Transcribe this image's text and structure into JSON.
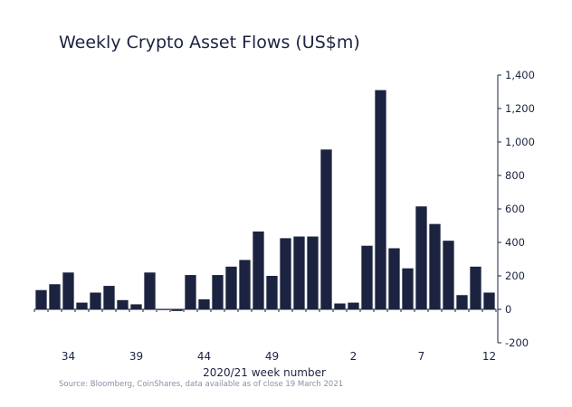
{
  "chart_data": {
    "type": "bar",
    "title": "Weekly Crypto Asset Flows (US$m)",
    "xlabel": "2020/21 week number",
    "ylabel": "",
    "ylim": [
      -200,
      1400
    ],
    "yticks": [
      {
        "value": 1400,
        "label": "1,400"
      },
      {
        "value": 1200,
        "label": "1,200"
      },
      {
        "value": 1000,
        "label": "1,000"
      },
      {
        "value": 800,
        "label": "800"
      },
      {
        "value": 600,
        "label": "600"
      },
      {
        "value": 400,
        "label": "400"
      },
      {
        "value": 200,
        "label": "200"
      },
      {
        "value": 0,
        "label": "0"
      },
      {
        "value": -200,
        "label": "-200"
      }
    ],
    "categories": [
      "32",
      "33",
      "34",
      "35",
      "36",
      "37",
      "38",
      "39",
      "40",
      "41",
      "42",
      "43",
      "44",
      "45",
      "46",
      "47",
      "48",
      "49",
      "50",
      "51",
      "52",
      "53",
      "1",
      "2",
      "3",
      "4",
      "5",
      "6",
      "7",
      "8",
      "9",
      "10",
      "11",
      "12"
    ],
    "values": [
      115,
      150,
      220,
      40,
      100,
      140,
      55,
      30,
      220,
      0,
      -10,
      205,
      60,
      205,
      255,
      295,
      465,
      200,
      425,
      435,
      435,
      955,
      35,
      40,
      380,
      1310,
      365,
      245,
      615,
      510,
      410,
      85,
      255,
      100
    ],
    "xtick_labels": [
      {
        "index": 2,
        "label": "34"
      },
      {
        "index": 7,
        "label": "39"
      },
      {
        "index": 12,
        "label": "44"
      },
      {
        "index": 17,
        "label": "49"
      },
      {
        "index": 23,
        "label": "2"
      },
      {
        "index": 28,
        "label": "7"
      },
      {
        "index": 33,
        "label": "12"
      }
    ],
    "bar_color": "#1b2340",
    "axis_side": "right"
  },
  "source_note": "Source: Bloomberg, CoinShares, data available as of close 19 March 2021"
}
